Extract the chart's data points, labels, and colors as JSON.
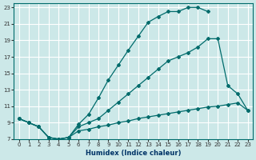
{
  "xlabel": "Humidex (Indice chaleur)",
  "background_color": "#cce8e8",
  "line_color": "#006b6b",
  "grid_color": "#ffffff",
  "xlim": [
    -0.5,
    23.5
  ],
  "ylim": [
    7,
    23.5
  ],
  "xticks": [
    0,
    1,
    2,
    3,
    4,
    5,
    6,
    7,
    8,
    9,
    10,
    11,
    12,
    13,
    14,
    15,
    16,
    17,
    18,
    19,
    20,
    21,
    22,
    23
  ],
  "yticks": [
    7,
    9,
    11,
    13,
    15,
    17,
    19,
    21,
    23
  ],
  "curve_upper_x": [
    0,
    1,
    2,
    3,
    4,
    5,
    6,
    7,
    8,
    9,
    10,
    11,
    12,
    13,
    14,
    15,
    16,
    17,
    18,
    19
  ],
  "curve_upper_y": [
    9.5,
    9.0,
    8.5,
    7.2,
    7.0,
    7.2,
    8.8,
    10.0,
    12.0,
    14.2,
    16.0,
    17.8,
    19.5,
    21.2,
    21.9,
    22.5,
    22.5,
    23.0,
    23.0,
    22.5
  ],
  "curve_mid_x": [
    0,
    1,
    2,
    3,
    4,
    5,
    6,
    7,
    8,
    9,
    10,
    11,
    12,
    13,
    14,
    15,
    16,
    17,
    18,
    19,
    20,
    21,
    22,
    23
  ],
  "curve_mid_y": [
    9.5,
    9.0,
    8.5,
    7.2,
    7.0,
    7.2,
    8.5,
    9.0,
    9.5,
    10.5,
    11.5,
    12.5,
    13.5,
    14.5,
    15.5,
    16.5,
    17.0,
    17.5,
    18.2,
    19.2,
    19.2,
    13.5,
    12.5,
    10.5
  ],
  "curve_low_x": [
    0,
    1,
    2,
    3,
    4,
    5,
    6,
    7,
    8,
    9,
    10,
    11,
    12,
    13,
    14,
    15,
    16,
    17,
    18,
    19,
    20,
    21,
    22,
    23
  ],
  "curve_low_y": [
    9.5,
    9.0,
    8.5,
    7.2,
    7.0,
    7.2,
    8.0,
    8.2,
    8.5,
    8.7,
    9.0,
    9.2,
    9.5,
    9.7,
    9.9,
    10.1,
    10.3,
    10.5,
    10.7,
    10.9,
    11.0,
    11.2,
    11.4,
    10.5
  ]
}
